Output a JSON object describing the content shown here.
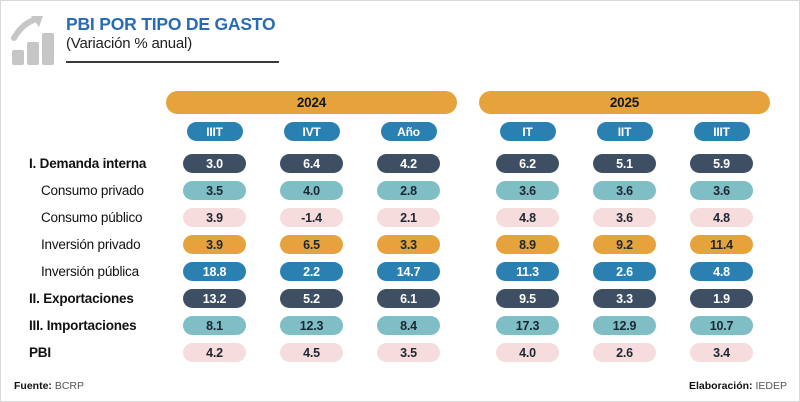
{
  "header": {
    "title": "PBI POR TIPO DE GASTO",
    "subtitle": "(Variación % anual)",
    "icon": "bar-chart-growth-icon"
  },
  "colors": {
    "title_blue": "#2a6bb7",
    "navy": "#3e4f63",
    "blue": "#2b80b2",
    "teal": "#7fbec4",
    "pink": "#f6dcdc",
    "orange": "#e6a33c",
    "icon_gray": "#c6c6c6"
  },
  "chart_data": {
    "type": "table",
    "title": "PBI POR TIPO DE GASTO",
    "subtitle": "(Variación % anual)",
    "year_groups": [
      {
        "label": "2024",
        "columns": [
          "IIIT",
          "IVT",
          "Año"
        ]
      },
      {
        "label": "2025",
        "columns": [
          "IT",
          "IIT",
          "IIIT"
        ]
      }
    ],
    "rows": [
      {
        "label": "I. Demanda interna",
        "emphasis": true,
        "indent": false,
        "pill_style": "navy",
        "values": [
          3.0,
          6.4,
          4.2,
          6.2,
          5.1,
          5.9
        ]
      },
      {
        "label": "Consumo privado",
        "emphasis": false,
        "indent": true,
        "pill_style": "teal",
        "values": [
          3.5,
          4.0,
          2.8,
          3.6,
          3.6,
          3.6
        ]
      },
      {
        "label": "Consumo público",
        "emphasis": false,
        "indent": true,
        "pill_style": "pink",
        "values": [
          3.9,
          -1.4,
          2.1,
          4.8,
          3.6,
          4.8
        ]
      },
      {
        "label": "Inversión privado",
        "emphasis": false,
        "indent": true,
        "pill_style": "orange",
        "values": [
          3.9,
          6.5,
          3.3,
          8.9,
          9.2,
          11.4
        ]
      },
      {
        "label": "Inversión pública",
        "emphasis": false,
        "indent": true,
        "pill_style": "blue",
        "values": [
          18.8,
          2.2,
          14.7,
          11.3,
          2.6,
          4.8
        ]
      },
      {
        "label": "II. Exportaciones",
        "emphasis": true,
        "indent": false,
        "pill_style": "navy",
        "values": [
          13.2,
          5.2,
          6.1,
          9.5,
          3.3,
          1.9
        ]
      },
      {
        "label": "III. Importaciones",
        "emphasis": true,
        "indent": false,
        "pill_style": "teal",
        "values": [
          8.1,
          12.3,
          8.4,
          17.3,
          12.9,
          10.7
        ]
      },
      {
        "label": "PBI",
        "emphasis": true,
        "indent": false,
        "pill_style": "pink",
        "values": [
          4.2,
          4.5,
          3.5,
          4.0,
          2.6,
          3.4
        ]
      }
    ]
  },
  "footer": {
    "source_label": "Fuente:",
    "source_value": "BCRP",
    "elaboration_label": "Elaboración:",
    "elaboration_value": "IEDEP"
  }
}
